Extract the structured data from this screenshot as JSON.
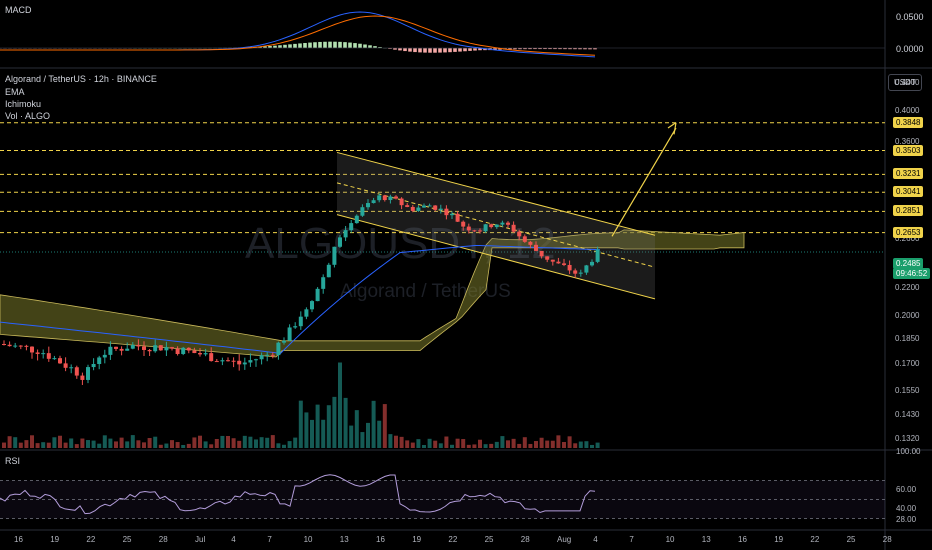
{
  "header": {
    "symbol": "Algorand / TetherUS · 12h · BINANCE",
    "indicators": [
      "EMA",
      "Ichimoku",
      "Vol · ALGO"
    ]
  },
  "watermark": {
    "ticker": "ALGOUSDT, 12",
    "name": "Algorand / TetherUS"
  },
  "macd_pane": {
    "label": "MACD",
    "ticks": [
      "0.0500",
      "0.0000"
    ]
  },
  "rsi_pane": {
    "label": "RSI",
    "ticks": [
      "100.00",
      "60.00",
      "40.00",
      "28.00"
    ]
  },
  "price_axis": {
    "unit": "USDT",
    "ticks": [
      "0.4400",
      "0.4000",
      "0.3600",
      "0.2600",
      "0.2200",
      "0.2000",
      "0.1850",
      "0.1700",
      "0.1550",
      "0.1430",
      "0.1320"
    ],
    "levels": [
      "0.3848",
      "0.3503",
      "0.3231",
      "0.3041",
      "0.2851",
      "0.2653"
    ],
    "current_price": "0.2485",
    "countdown": "09:46:52"
  },
  "time_axis": {
    "labels": [
      "16",
      "19",
      "22",
      "25",
      "28",
      "Jul",
      "4",
      "7",
      "10",
      "13",
      "16",
      "19",
      "22",
      "25",
      "28",
      "Aug",
      "4",
      "7",
      "10",
      "13",
      "16",
      "19",
      "22",
      "25",
      "28"
    ]
  },
  "colors": {
    "up": "#26a69a",
    "down": "#ef5350",
    "level": "#f0d34a",
    "ema": "#2962ff",
    "cloud": "#7a7a2a"
  },
  "chart_data": {
    "type": "candlestick",
    "title": "Algorand / TetherUS · 12h · BINANCE",
    "series": [
      {
        "name": "EMA",
        "values": []
      },
      {
        "name": "Ichimoku",
        "values": []
      },
      {
        "name": "Vol · ALGO",
        "values": []
      }
    ],
    "horizontal_levels": [
      0.3848,
      0.3503,
      0.3231,
      0.3041,
      0.2851,
      0.2653
    ],
    "current_price": 0.2485,
    "ylim": [
      0.128,
      0.46
    ]
  }
}
